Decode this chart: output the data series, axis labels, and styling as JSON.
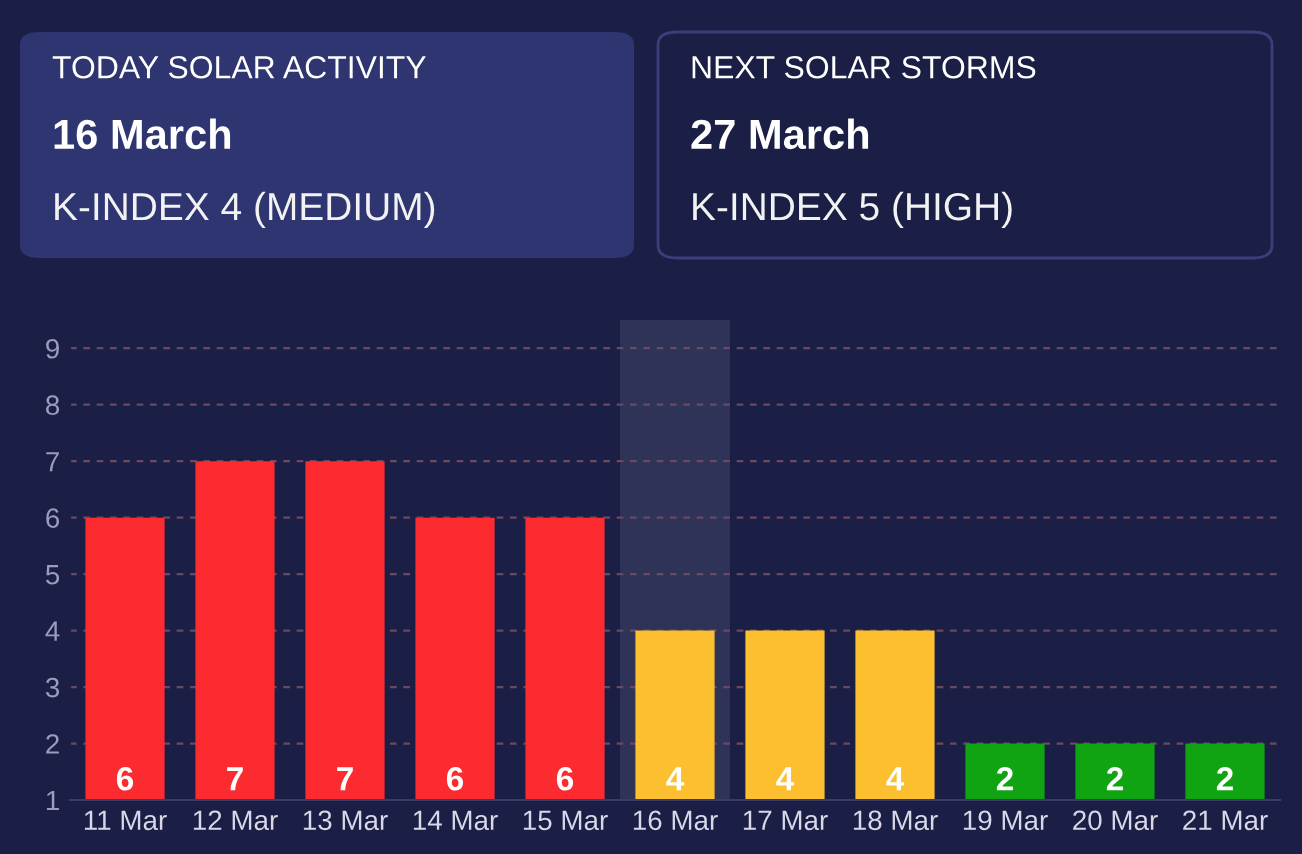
{
  "chart_data": {
    "type": "bar",
    "categories": [
      "11 Mar",
      "12 Mar",
      "13 Mar",
      "14 Mar",
      "15 Mar",
      "16 Mar",
      "17 Mar",
      "18 Mar",
      "19 Mar",
      "20 Mar",
      "21 Mar"
    ],
    "values": [
      6,
      7,
      7,
      6,
      6,
      4,
      4,
      4,
      2,
      2,
      2
    ],
    "colors": [
      "#fc2b2f",
      "#fc2b2f",
      "#fc2b2f",
      "#fc2b2f",
      "#fc2b2f",
      "#fcbf2f",
      "#fcbf2f",
      "#fcbf2f",
      "#10a312",
      "#10a312",
      "#10a312"
    ],
    "ylim": [
      1,
      9.5
    ],
    "yticks": [
      1,
      2,
      3,
      4,
      5,
      6,
      7,
      8,
      9
    ],
    "grid": "y",
    "data_labels": true,
    "bands": [
      {
        "axis": "x",
        "from": "16 Mar",
        "to": "16 Mar",
        "color": "#2f3358"
      }
    ],
    "annotations": [
      "TODAY SOLAR ACTIVITY",
      "16 March",
      "K-INDEX 4 (MEDIUM)",
      "NEXT SOLAR STORMS",
      "27 March",
      "K-INDEX 5 (HIGH)"
    ]
  }
}
